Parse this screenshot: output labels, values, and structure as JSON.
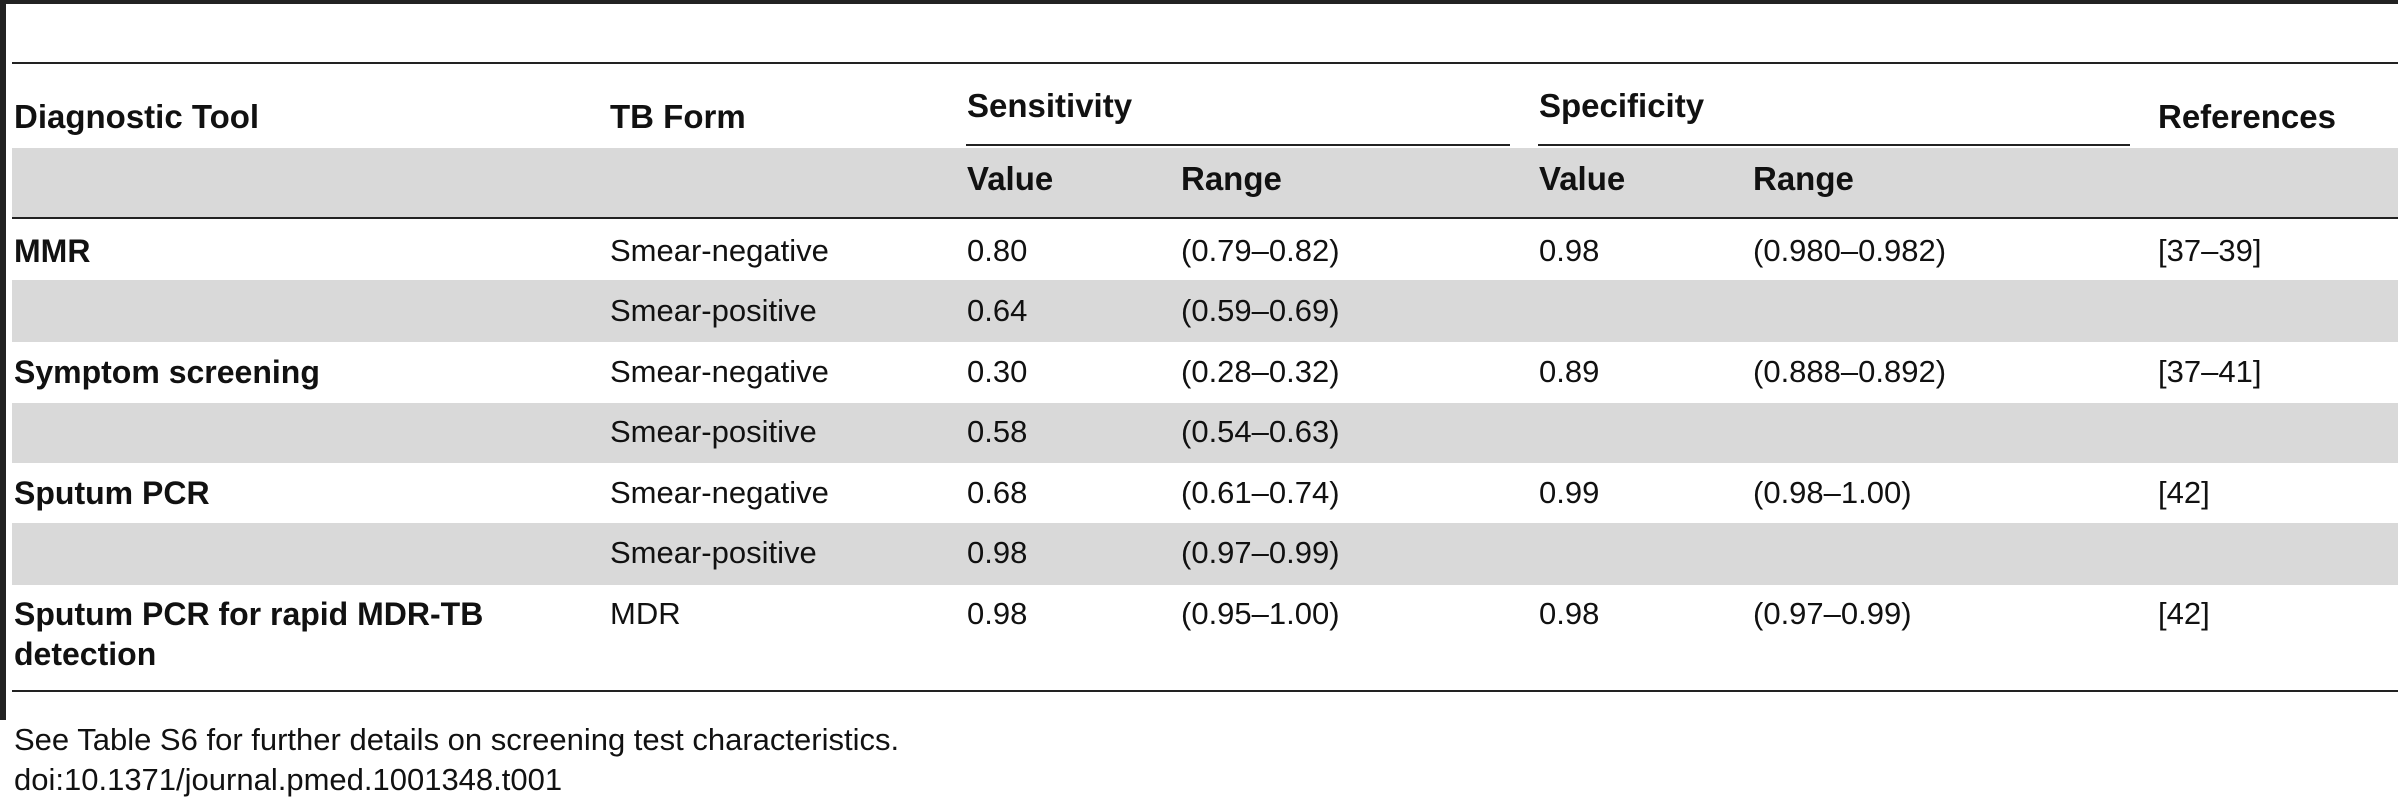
{
  "table": {
    "headers": {
      "diagnostic_tool": "Diagnostic Tool",
      "tb_form": "TB Form",
      "sensitivity": "Sensitivity",
      "specificity": "Specificity",
      "references": "References",
      "value": "Value",
      "range": "Range"
    },
    "rows": [
      {
        "tool": "MMR",
        "form": "Smear-negative",
        "sens_value": "0.80",
        "sens_range": "(0.79–0.82)",
        "spec_value": "0.98",
        "spec_range": "(0.980–0.982)",
        "refs": "[37–39]"
      },
      {
        "tool": "",
        "form": "Smear-positive",
        "sens_value": "0.64",
        "sens_range": "(0.59–0.69)",
        "spec_value": "",
        "spec_range": "",
        "refs": ""
      },
      {
        "tool": "Symptom screening",
        "form": "Smear-negative",
        "sens_value": "0.30",
        "sens_range": "(0.28–0.32)",
        "spec_value": "0.89",
        "spec_range": "(0.888–0.892)",
        "refs": "[37–41]"
      },
      {
        "tool": "",
        "form": "Smear-positive",
        "sens_value": "0.58",
        "sens_range": "(0.54–0.63)",
        "spec_value": "",
        "spec_range": "",
        "refs": ""
      },
      {
        "tool": "Sputum PCR",
        "form": "Smear-negative",
        "sens_value": "0.68",
        "sens_range": "(0.61–0.74)",
        "spec_value": "0.99",
        "spec_range": "(0.98–1.00)",
        "refs": "[42]"
      },
      {
        "tool": "",
        "form": "Smear-positive",
        "sens_value": "0.98",
        "sens_range": "(0.97–0.99)",
        "spec_value": "",
        "spec_range": "",
        "refs": ""
      },
      {
        "tool": "Sputum PCR for rapid MDR-TB detection",
        "form": "MDR",
        "sens_value": "0.98",
        "sens_range": "(0.95–1.00)",
        "spec_value": "0.98",
        "spec_range": "(0.97–0.99)",
        "refs": "[42]"
      }
    ]
  },
  "footnote": "See Table S6 for further details on screening test characteristics.",
  "doi": "doi:10.1371/journal.pmed.1001348.t001"
}
